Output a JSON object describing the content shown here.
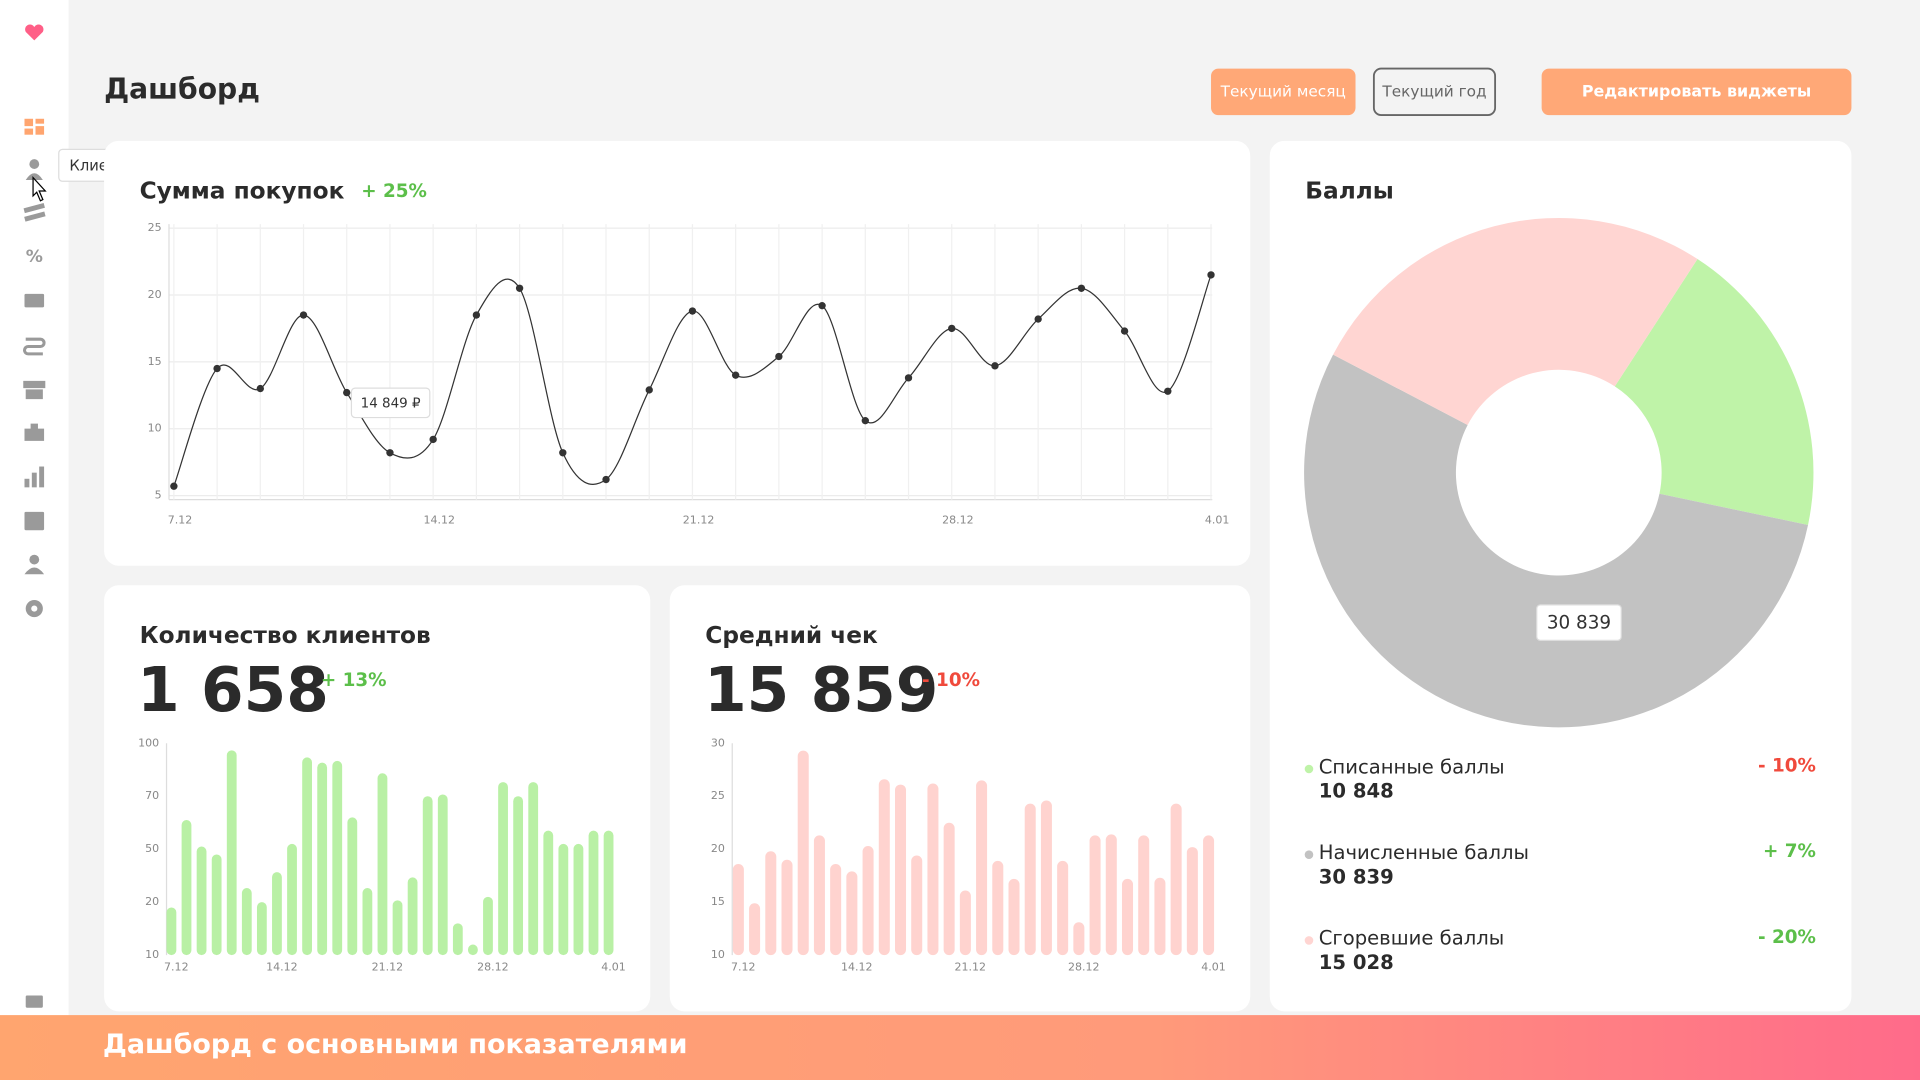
{
  "sidebar": {
    "tooltip": "Клиенты"
  },
  "header": {
    "title": "Дашборд",
    "buttons": [
      "Текущий месяц",
      "Текущий год",
      "Редактировать виджеты"
    ]
  },
  "banner": "Дашборд с основными показателями",
  "chart_data": [
    {
      "type": "line",
      "title": "Сумма покупок",
      "change": "+ 25%",
      "change_color": "#5cbf4a",
      "categories": [
        "7.12",
        null,
        null,
        null,
        null,
        null,
        "14.12",
        null,
        null,
        null,
        null,
        null,
        "21.12",
        null,
        null,
        null,
        null,
        null,
        "28.12",
        null,
        null,
        null,
        null,
        null,
        "4.01"
      ],
      "values": [
        5.7,
        14.5,
        13.0,
        18.5,
        12.7,
        8.2,
        9.2,
        18.5,
        20.5,
        8.2,
        6.2,
        12.9,
        18.8,
        14.0,
        15.4,
        19.2,
        10.6,
        13.8,
        17.5,
        14.7,
        18.2,
        20.5,
        17.3,
        12.8,
        21.5
      ],
      "color": "#333333",
      "ylim": [
        4.7,
        25.3
      ],
      "yticks": [
        5,
        10,
        15,
        20,
        25
      ],
      "grid": true,
      "tooltip": "14 849 ₽"
    },
    {
      "type": "bar",
      "title": "Количество клиентов",
      "total": "1 658",
      "change": "+ 13%",
      "change_color": "#5cbf4a",
      "categories": [
        "7.12",
        null,
        null,
        null,
        null,
        null,
        null,
        "14.12",
        null,
        null,
        null,
        null,
        null,
        null,
        "21.12",
        null,
        null,
        null,
        null,
        null,
        null,
        "28.12",
        null,
        null,
        null,
        null,
        null,
        null,
        null,
        "4.01"
      ],
      "values": [
        19,
        61,
        51,
        47,
        96,
        28,
        20,
        37,
        52,
        92,
        89,
        90,
        62,
        28,
        83,
        21,
        34,
        70,
        71,
        16,
        12,
        23,
        78,
        70,
        78,
        57,
        52,
        52,
        57,
        57
      ],
      "color": "#b9f0a5",
      "ylim": [
        10,
        100
      ],
      "yticks": [
        10,
        20,
        50,
        70,
        100
      ],
      "scale": "piecewise"
    },
    {
      "type": "bar",
      "title": "Средний чек",
      "total": "15 859",
      "change": "- 10%",
      "change_color": "#f04a3c",
      "categories": [
        "7.12",
        null,
        null,
        null,
        null,
        null,
        null,
        "14.12",
        null,
        null,
        null,
        null,
        null,
        null,
        "21.12",
        null,
        null,
        null,
        null,
        null,
        null,
        "28.12",
        null,
        null,
        null,
        null,
        null,
        null,
        null,
        "4.01"
      ],
      "values": [
        18.6,
        14.9,
        19.8,
        19.0,
        29.3,
        21.3,
        18.6,
        17.9,
        20.3,
        26.6,
        26.1,
        19.4,
        26.2,
        22.5,
        16.1,
        26.5,
        18.9,
        17.2,
        24.3,
        24.6,
        18.9,
        13.1,
        21.3,
        21.4,
        17.2,
        21.3,
        17.3,
        24.3,
        20.2,
        21.3
      ],
      "color": "#ffd3cf",
      "ylim": [
        10,
        30
      ],
      "yticks": [
        10,
        15,
        20,
        25,
        30
      ],
      "scale": "linear"
    },
    {
      "type": "pie",
      "title": "Баллы",
      "categories": [
        "Списанные баллы",
        "Начисленные баллы",
        "Сгоревшие баллы"
      ],
      "values": [
        10848,
        30839,
        15028
      ],
      "value_labels": [
        "10 848",
        "30 839",
        "15 028"
      ],
      "colors": [
        "#bff3a8",
        "#c2c2c2",
        "#ffd5d2"
      ],
      "changes": [
        "- 10%",
        "+ 7%",
        "- 20%"
      ],
      "change_colors": [
        "#f04a3c",
        "#5cbf4a",
        "#5cbf4a"
      ]
    }
  ]
}
